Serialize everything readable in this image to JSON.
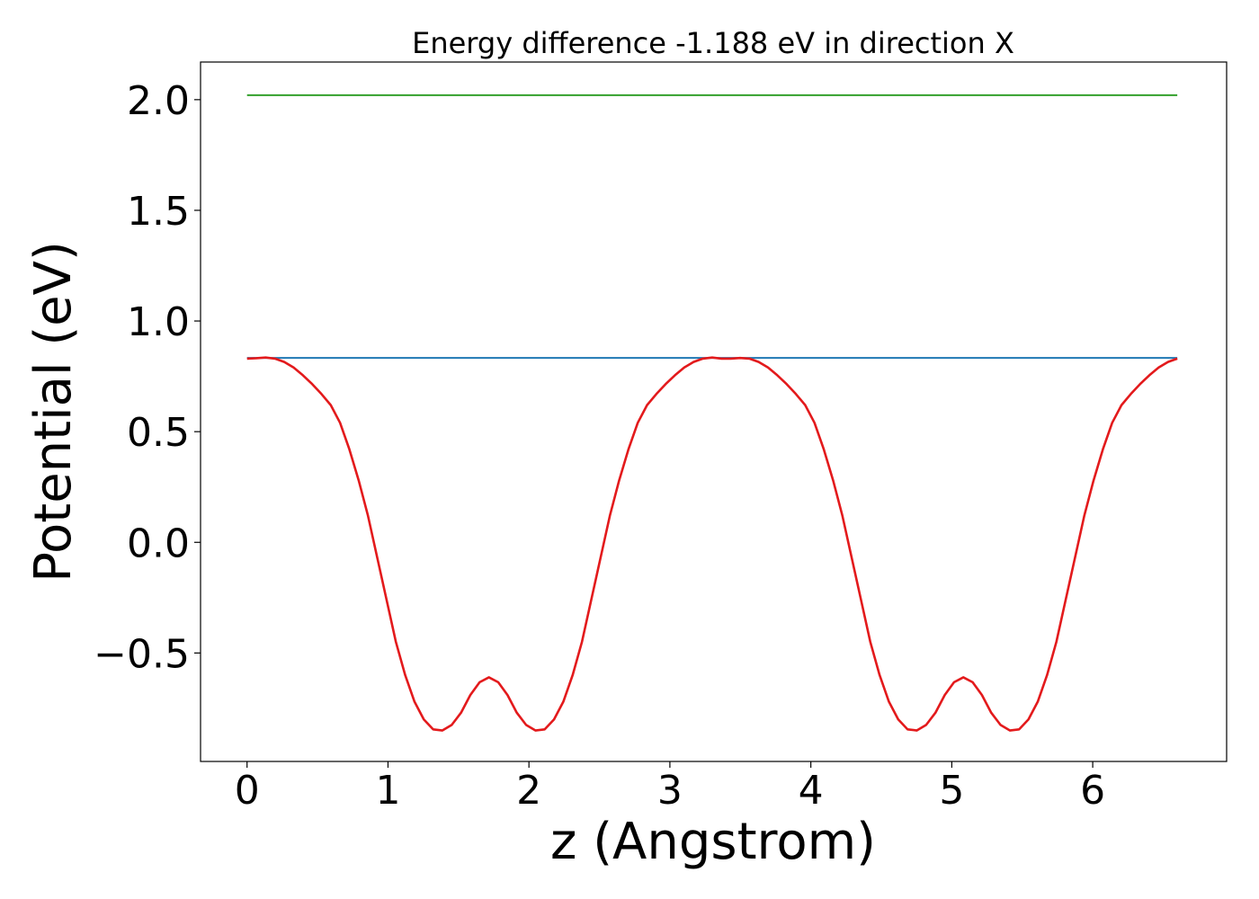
{
  "chart_data": {
    "type": "line",
    "title": "Energy difference -1.188 eV in direction X",
    "xlabel": "z (Angstrom)",
    "ylabel": "Potential (eV)",
    "xlim": [
      -0.33,
      6.95
    ],
    "ylim": [
      -0.99,
      2.17
    ],
    "xticks": [
      0,
      1,
      2,
      3,
      4,
      5,
      6
    ],
    "xtick_labels": [
      "0",
      "1",
      "2",
      "3",
      "4",
      "5",
      "6"
    ],
    "yticks": [
      -0.5,
      0.0,
      0.5,
      1.0,
      1.5,
      2.0
    ],
    "ytick_labels": [
      "−0.5",
      "0.0",
      "0.5",
      "1.0",
      "1.5",
      "2.0"
    ],
    "grid": false,
    "colors": {
      "potential": "#e31a1c",
      "average": "#1f78b4",
      "max": "#33a02c"
    },
    "series": [
      {
        "key": "potential",
        "x": [
          0.0,
          0.066,
          0.132,
          0.198,
          0.264,
          0.33,
          0.396,
          0.462,
          0.528,
          0.594,
          0.66,
          0.726,
          0.792,
          0.858,
          0.924,
          0.99,
          1.056,
          1.122,
          1.188,
          1.254,
          1.32,
          1.386,
          1.452,
          1.518,
          1.584,
          1.65,
          1.716,
          1.782,
          1.848,
          1.914,
          1.98,
          2.046,
          2.112,
          2.178,
          2.244,
          2.31,
          2.376,
          2.442,
          2.508,
          2.574,
          2.64,
          2.706,
          2.772,
          2.838,
          2.904,
          2.97,
          3.036,
          3.102,
          3.168,
          3.234,
          3.3,
          3.366,
          3.432,
          3.498,
          3.564,
          3.63,
          3.696,
          3.762,
          3.828,
          3.894,
          3.96,
          4.026,
          4.092,
          4.158,
          4.224,
          4.29,
          4.356,
          4.422,
          4.488,
          4.554,
          4.62,
          4.686,
          4.752,
          4.818,
          4.884,
          4.95,
          5.016,
          5.082,
          5.148,
          5.214,
          5.28,
          5.346,
          5.412,
          5.478,
          5.544,
          5.61,
          5.676,
          5.742,
          5.808,
          5.874,
          5.94,
          6.006,
          6.072,
          6.138,
          6.204,
          6.27,
          6.336,
          6.402,
          6.468,
          6.534,
          6.6
        ],
        "y": [
          0.83,
          0.832,
          0.835,
          0.83,
          0.815,
          0.79,
          0.755,
          0.715,
          0.67,
          0.62,
          0.54,
          0.42,
          0.28,
          0.12,
          -0.07,
          -0.26,
          -0.45,
          -0.6,
          -0.72,
          -0.8,
          -0.845,
          -0.85,
          -0.825,
          -0.77,
          -0.69,
          -0.632,
          -0.61,
          -0.632,
          -0.69,
          -0.77,
          -0.825,
          -0.85,
          -0.845,
          -0.8,
          -0.72,
          -0.6,
          -0.45,
          -0.26,
          -0.07,
          0.12,
          0.28,
          0.42,
          0.54,
          0.62,
          0.67,
          0.715,
          0.755,
          0.79,
          0.815,
          0.83,
          0.835,
          0.83,
          0.83,
          0.833,
          0.83,
          0.815,
          0.79,
          0.755,
          0.715,
          0.67,
          0.62,
          0.54,
          0.42,
          0.28,
          0.12,
          -0.07,
          -0.26,
          -0.45,
          -0.6,
          -0.72,
          -0.8,
          -0.845,
          -0.85,
          -0.825,
          -0.77,
          -0.69,
          -0.632,
          -0.61,
          -0.632,
          -0.69,
          -0.77,
          -0.825,
          -0.85,
          -0.845,
          -0.8,
          -0.72,
          -0.6,
          -0.45,
          -0.26,
          -0.07,
          0.12,
          0.28,
          0.42,
          0.54,
          0.62,
          0.67,
          0.715,
          0.755,
          0.79,
          0.815,
          0.83
        ]
      },
      {
        "key": "average",
        "x": [
          0.0,
          6.6
        ],
        "y": [
          0.833,
          0.833
        ]
      },
      {
        "key": "max",
        "x": [
          0.0,
          6.6
        ],
        "y": [
          2.02,
          2.02
        ]
      }
    ]
  }
}
